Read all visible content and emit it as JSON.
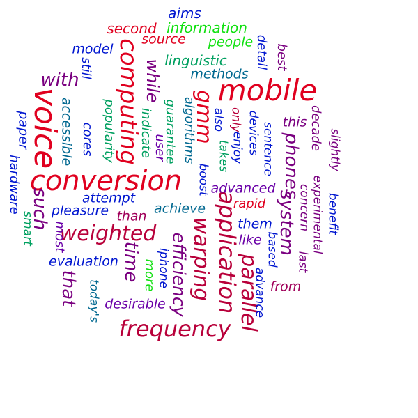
{
  "title": "word cloud",
  "colors": {
    "red": "#e0001f",
    "crimson": "#b8003a",
    "maroon": "#a0005a",
    "purple": "#7a0080",
    "violet": "#6a00a8",
    "indigo": "#3a10c0",
    "blue": "#0016d0",
    "teal": "#006890",
    "green": "#00a060",
    "lime": "#10e010"
  },
  "words": [
    {
      "text": "mobile",
      "color": "red"
    },
    {
      "text": "voice",
      "color": "red"
    },
    {
      "text": "conversion",
      "color": "red"
    },
    {
      "text": "computing",
      "color": "red"
    },
    {
      "text": "gmm",
      "color": "red"
    },
    {
      "text": "with",
      "color": "purple"
    },
    {
      "text": "weighted",
      "color": "crimson"
    },
    {
      "text": "frequency",
      "color": "crimson"
    },
    {
      "text": "application",
      "color": "crimson"
    },
    {
      "text": "warping",
      "color": "crimson"
    },
    {
      "text": "parallel",
      "color": "crimson"
    },
    {
      "text": "time",
      "color": "purple"
    },
    {
      "text": "that",
      "color": "purple"
    },
    {
      "text": "efficiency",
      "color": "purple"
    },
    {
      "text": "such",
      "color": "purple"
    },
    {
      "text": "phones",
      "color": "purple"
    },
    {
      "text": "system",
      "color": "purple"
    },
    {
      "text": "while",
      "color": "purple"
    },
    {
      "text": "aims",
      "color": "blue"
    },
    {
      "text": "second",
      "color": "red"
    },
    {
      "text": "information",
      "color": "lime"
    },
    {
      "text": "source",
      "color": "red"
    },
    {
      "text": "people",
      "color": "lime"
    },
    {
      "text": "model",
      "color": "blue"
    },
    {
      "text": "still",
      "color": "blue"
    },
    {
      "text": "linguistic",
      "color": "green"
    },
    {
      "text": "detail",
      "color": "blue"
    },
    {
      "text": "best",
      "color": "purple"
    },
    {
      "text": "methods",
      "color": "teal"
    },
    {
      "text": "accessible",
      "color": "teal"
    },
    {
      "text": "paper",
      "color": "blue"
    },
    {
      "text": "cores",
      "color": "blue"
    },
    {
      "text": "popularity",
      "color": "green"
    },
    {
      "text": "indicate",
      "color": "green"
    },
    {
      "text": "user",
      "color": "violet"
    },
    {
      "text": "guarantee",
      "color": "green"
    },
    {
      "text": "algorithms",
      "color": "teal"
    },
    {
      "text": "boost",
      "color": "blue"
    },
    {
      "text": "also",
      "color": "blue"
    },
    {
      "text": "takes",
      "color": "green"
    },
    {
      "text": "only",
      "color": "crimson"
    },
    {
      "text": "enjoy",
      "color": "blue"
    },
    {
      "text": "devices",
      "color": "blue"
    },
    {
      "text": "sentence",
      "color": "blue"
    },
    {
      "text": "this",
      "color": "purple"
    },
    {
      "text": "decade",
      "color": "purple"
    },
    {
      "text": "slightly",
      "color": "purple"
    },
    {
      "text": "experimental",
      "color": "purple"
    },
    {
      "text": "benefit",
      "color": "blue"
    },
    {
      "text": "hardware",
      "color": "blue"
    },
    {
      "text": "smart",
      "color": "green"
    },
    {
      "text": "attempt",
      "color": "blue"
    },
    {
      "text": "pleasure",
      "color": "blue"
    },
    {
      "text": "than",
      "color": "maroon"
    },
    {
      "text": "achieve",
      "color": "teal"
    },
    {
      "text": "advanced",
      "color": "violet"
    },
    {
      "text": "rapid",
      "color": "red"
    },
    {
      "text": "concern",
      "color": "purple"
    },
    {
      "text": "them",
      "color": "blue"
    },
    {
      "text": "most",
      "color": "violet"
    },
    {
      "text": "like",
      "color": "violet"
    },
    {
      "text": "based",
      "color": "blue"
    },
    {
      "text": "last",
      "color": "purple"
    },
    {
      "text": "evaluation",
      "color": "blue"
    },
    {
      "text": "iphone",
      "color": "blue"
    },
    {
      "text": "more",
      "color": "lime"
    },
    {
      "text": "advance",
      "color": "blue"
    },
    {
      "text": "from",
      "color": "maroon"
    },
    {
      "text": "today's",
      "color": "teal"
    },
    {
      "text": "desirable",
      "color": "violet"
    }
  ]
}
